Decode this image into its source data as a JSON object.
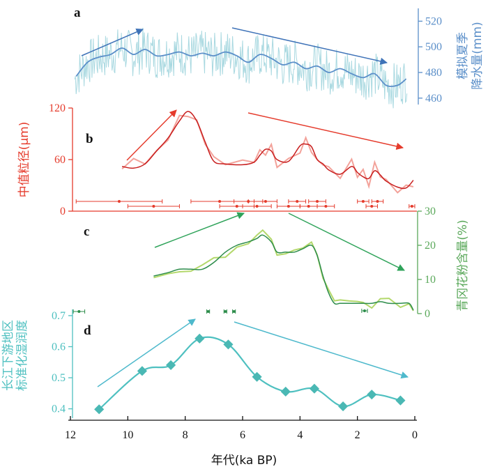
{
  "chart_data": [
    {
      "panel": "a",
      "type": "line",
      "ylabel": "模拟夏季降水量(mm)",
      "yticks": [
        460,
        480,
        500,
        520
      ],
      "ylim": [
        455,
        530
      ],
      "color": "#5b8fc9",
      "raw_color": "#a8d8e0",
      "xlim": [
        12,
        0
      ],
      "series": [
        {
          "x": [
            11.8,
            11.4,
            11.0,
            10.6,
            10.2,
            9.8,
            9.4,
            9.0,
            8.6,
            8.2,
            7.8,
            7.4,
            7.0,
            6.6,
            6.2,
            5.8,
            5.4,
            5.0,
            4.6,
            4.2,
            3.8,
            3.4,
            3.0,
            2.6,
            2.2,
            1.8,
            1.4,
            1.0,
            0.6,
            0.3
          ],
          "y": [
            477,
            488,
            492,
            494,
            499,
            494,
            498,
            493,
            494,
            496,
            493,
            495,
            493,
            496,
            493,
            488,
            494,
            491,
            486,
            488,
            483,
            485,
            480,
            483,
            479,
            476,
            479,
            470,
            470,
            475
          ]
        }
      ]
    },
    {
      "panel": "b",
      "type": "line",
      "ylabel": "中值粒径(μm)",
      "yticks": [
        0,
        60,
        120
      ],
      "ylim": [
        0,
        120
      ],
      "color": "#e53b2c",
      "raw_color": "#f3a29a",
      "xlim": [
        12,
        0
      ],
      "series": [
        {
          "x": [
            10.2,
            9.8,
            9.4,
            9.0,
            8.6,
            8.2,
            7.9,
            7.6,
            7.3,
            7.0,
            6.6,
            6.0,
            5.6,
            5.4,
            5.2,
            5.0,
            4.8,
            4.4,
            4.0,
            3.8,
            3.6,
            3.4,
            3.2,
            3.0,
            2.6,
            2.2,
            2.0,
            1.8,
            1.6,
            1.4,
            1.2,
            1.0,
            0.6,
            0.3,
            0.05
          ],
          "y": [
            52,
            50,
            55,
            70,
            85,
            105,
            116,
            105,
            80,
            58,
            55,
            54,
            57,
            65,
            72,
            70,
            60,
            58,
            76,
            78,
            75,
            60,
            55,
            48,
            43,
            52,
            45,
            40,
            38,
            47,
            42,
            35,
            28,
            27,
            36
          ]
        }
      ],
      "age_controls": {
        "x": [
          10.3,
          9.1,
          6.8,
          6.2,
          5.8,
          5.5,
          5.2,
          4.4,
          4.1,
          3.7,
          3.4,
          3.1,
          1.8,
          1.5,
          1.3,
          0.1
        ],
        "err": [
          1.5,
          0.9,
          1.0,
          0.6,
          0.5,
          0.5,
          0.4,
          0.4,
          0.3,
          0.3,
          0.3,
          0.3,
          0.2,
          0.2,
          0.2,
          0.1
        ]
      }
    },
    {
      "panel": "c",
      "type": "line",
      "ylabel": "青冈花粉含量(%)",
      "yticks": [
        0,
        10,
        20,
        30
      ],
      "ylim": [
        0,
        30
      ],
      "color": "#2c8c4a",
      "raw_color": "#b3d86b",
      "xlim": [
        12,
        0
      ],
      "series": [
        {
          "x": [
            9.1,
            8.6,
            8.2,
            7.8,
            7.4,
            7.0,
            6.6,
            6.2,
            5.8,
            5.5,
            5.3,
            5.0,
            4.8,
            4.5,
            4.2,
            3.9,
            3.6,
            3.4,
            3.2,
            3.0,
            2.8,
            2.6,
            2.3,
            2.0,
            1.8,
            1.5,
            1.2,
            0.9,
            0.5,
            0.2,
            0.05
          ],
          "y": [
            11,
            12,
            13,
            13,
            13,
            15,
            18,
            20,
            21,
            22,
            23,
            21,
            18,
            18,
            18,
            19,
            20,
            17,
            11,
            6,
            3,
            3,
            3,
            3,
            3,
            3,
            3.5,
            3,
            3,
            3,
            1
          ]
        }
      ],
      "age_controls": {
        "x": [
          1.75
        ],
        "err": [
          0.1
        ]
      }
    },
    {
      "panel": "d",
      "type": "line",
      "ylabel": "长江下游地区标准化湿润度",
      "yticks": [
        0.4,
        0.5,
        0.6,
        0.7
      ],
      "ylim": [
        0.37,
        0.72
      ],
      "color": "#4ec0c0",
      "xlim": [
        12,
        0
      ],
      "xlabel": "年代(ka BP)",
      "xticks": [
        12,
        10,
        8,
        6,
        4,
        2,
        0
      ],
      "series": [
        {
          "x": [
            11.0,
            9.5,
            8.5,
            7.5,
            6.5,
            5.5,
            4.5,
            3.5,
            2.5,
            1.5,
            0.5
          ],
          "y": [
            0.4,
            0.53,
            0.55,
            0.64,
            0.62,
            0.51,
            0.46,
            0.47,
            0.41,
            0.45,
            0.43
          ]
        }
      ],
      "age_controls": {
        "x": [
          11.7,
          7.2,
          6.6,
          6.3
        ],
        "err": [
          0.2,
          0.05,
          0.05,
          0.05
        ]
      }
    }
  ]
}
